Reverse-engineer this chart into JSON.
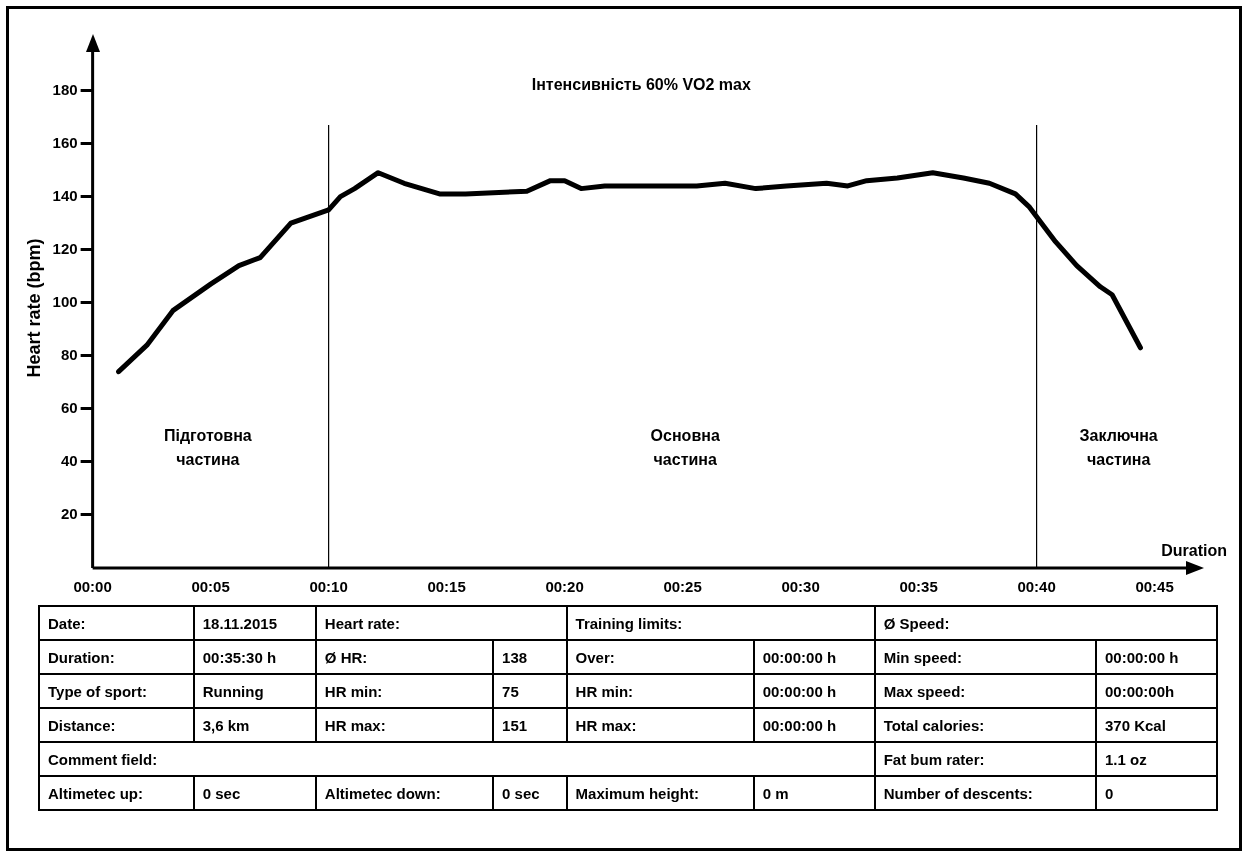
{
  "chart_data": {
    "type": "line",
    "title": "Інтенсивність 60% VO2 max",
    "xlabel": "Duration",
    "ylabel": "Heart rate (bpm)",
    "x": [
      1.1,
      2.3,
      3.4,
      5,
      6.2,
      7.1,
      8.4,
      10,
      10.5,
      11.1,
      12.1,
      13.2,
      14.7,
      15.8,
      18.4,
      19.4,
      20,
      20.7,
      21.7,
      25.6,
      26.8,
      28.1,
      29.4,
      31.1,
      32,
      32.8,
      34.1,
      35.6,
      36.9,
      38,
      39.1,
      39.7,
      40.2,
      40.8,
      41.7,
      42.7,
      43.2,
      44.4
    ],
    "series": [
      {
        "color": "#000000",
        "values": [
          74,
          84,
          97,
          107,
          114,
          117,
          130,
          135,
          140,
          143,
          149,
          145,
          141,
          141,
          142,
          146,
          146,
          143,
          144,
          144,
          145,
          143,
          144,
          145,
          144,
          146,
          147,
          149,
          147,
          145,
          141,
          136,
          130,
          123,
          114,
          106,
          103,
          83
        ]
      }
    ],
    "xlim": [
      0,
      46.5
    ],
    "ylim": [
      0,
      196
    ],
    "xticks": [
      {
        "value": 0,
        "label": "00:00"
      },
      {
        "value": 5,
        "label": "00:05"
      },
      {
        "value": 10,
        "label": "00:10"
      },
      {
        "value": 15,
        "label": "00:15"
      },
      {
        "value": 20,
        "label": "00:20"
      },
      {
        "value": 25,
        "label": "00:25"
      },
      {
        "value": 30,
        "label": "00:30"
      },
      {
        "value": 35,
        "label": "00:35"
      },
      {
        "value": 40,
        "label": "00:40"
      },
      {
        "value": 45,
        "label": "00:45"
      }
    ],
    "yticks": [
      20,
      40,
      60,
      80,
      100,
      120,
      140,
      160,
      180
    ],
    "ref_lines": [
      {
        "axis": "x",
        "value": 10,
        "color": "#000000"
      },
      {
        "axis": "x",
        "value": 40,
        "color": "#000000"
      }
    ],
    "grid": false,
    "legend": false,
    "marker": "none",
    "line_style": "solid",
    "annotations": [
      "Підготовна\nчастина",
      "Основна\nчастина",
      "Заключна\nчастина",
      "Date:",
      "18.11.2015",
      "Heart rate:",
      "Training limits:",
      "Ø Speed:",
      "Duration:",
      "00:35:30 h",
      "Ø HR:",
      "138",
      "Over:",
      "00:00:00 h",
      "Min speed:",
      "00:00:00 h",
      "Type of sport:",
      "Running",
      "HR min:",
      "75",
      "HR min:",
      "00:00:00 h",
      "Max speed:",
      "00:00:00h",
      "Distance:",
      "3,6 km",
      "HR max:",
      "151",
      "HR max:",
      "00:00:00 h",
      "Total calories:",
      "370 Kcal",
      "Comment field:",
      "Fat bum rater:",
      "1.1 oz",
      "Altimetec up:",
      "0 sec",
      "Altimetec down:",
      "0 sec",
      "Maximum height:",
      "0 m",
      "Number of descents:",
      "0"
    ]
  }
}
